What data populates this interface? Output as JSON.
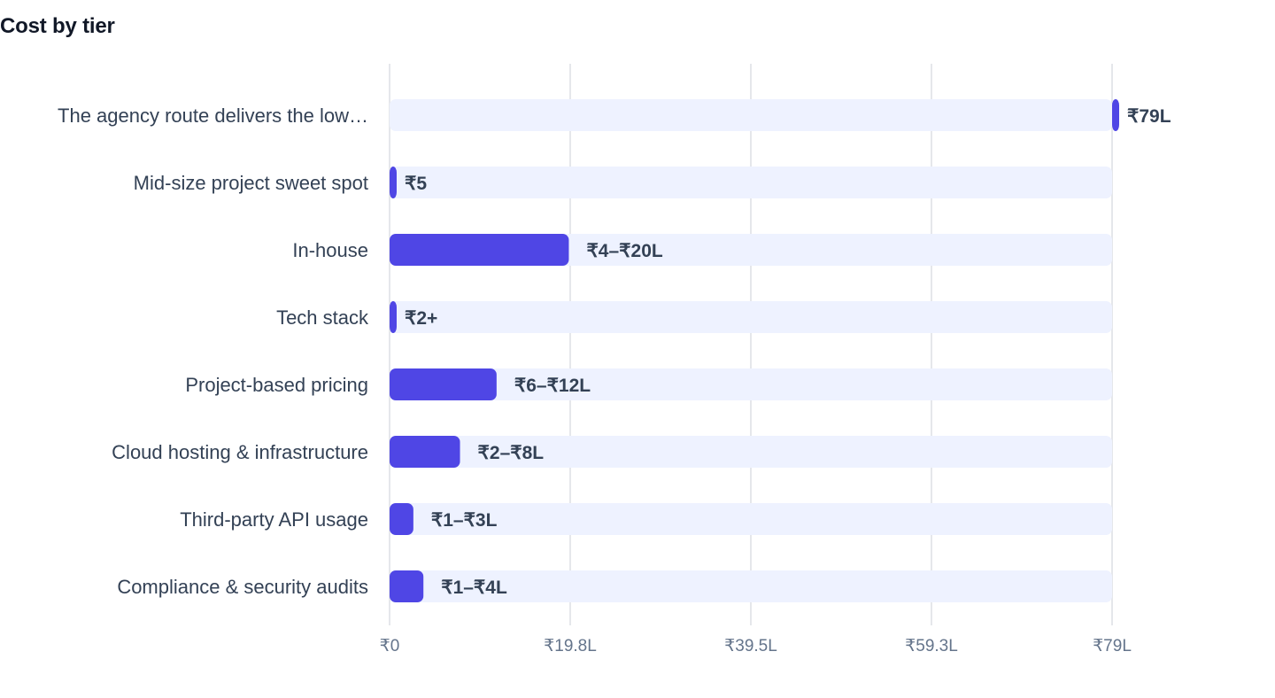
{
  "chart_data": {
    "type": "bar",
    "orientation": "horizontal",
    "title": "Cost by tier",
    "xlabel": "",
    "ylabel": "",
    "xlim": [
      0,
      79
    ],
    "x_unit": "₹ lakh",
    "grid": true,
    "categories": [
      "The agency route delivers the low…",
      "Mid-size project sweet spot",
      "In-house",
      "Tech stack",
      "Project-based pricing",
      "Cloud hosting & infrastructure",
      "Third-party API usage",
      "Compliance & security audits"
    ],
    "series": [
      {
        "values": [
          {
            "low": 79,
            "high": 79
          },
          {
            "low": 0,
            "high": 0
          },
          {
            "low": 0,
            "high": 19.6
          },
          {
            "low": 0,
            "high": 0
          },
          {
            "low": 0,
            "high": 11.7
          },
          {
            "low": 0,
            "high": 7.7
          },
          {
            "low": 0,
            "high": 2.6
          },
          {
            "low": 0,
            "high": 3.7
          }
        ]
      }
    ],
    "value_labels": [
      "₹79L",
      "₹5",
      "₹4–₹20L",
      "₹2+",
      "₹6–₹12L",
      "₹2–₹8L",
      "₹1–₹3L",
      "₹1–₹4L"
    ],
    "ticks": [
      0,
      19.75,
      39.5,
      59.25,
      79
    ],
    "tick_labels": [
      "₹0",
      "₹19.8L",
      "₹39.5L",
      "₹59.3L",
      "₹79L"
    ],
    "colors": {
      "bar": "#4f46e5",
      "track": "#eef2ff",
      "grid": "#e5e7eb",
      "label": "#334155",
      "tick": "#64748b"
    }
  }
}
